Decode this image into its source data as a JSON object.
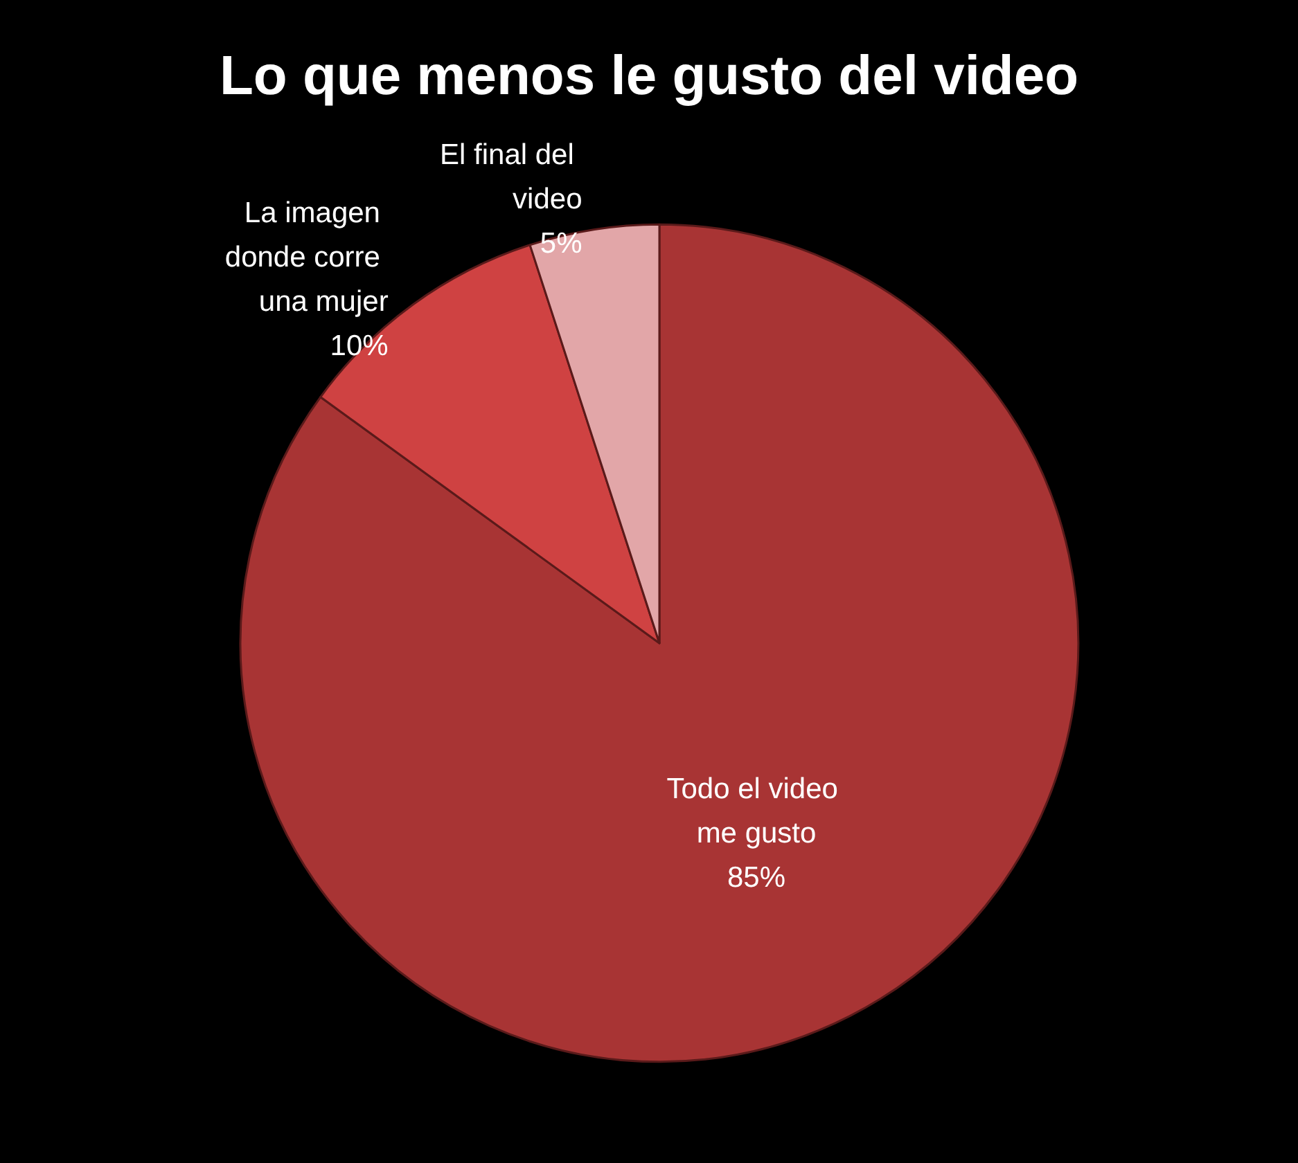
{
  "chart_data": {
    "type": "pie",
    "title": "Lo que menos le gusto del video",
    "categories": [
      "Todo el video me gusto",
      "La imagen donde corre una mujer",
      "El final del video"
    ],
    "values": [
      85,
      10,
      5
    ],
    "colors": [
      "#a83434",
      "#cf4242",
      "#e2a6a8"
    ],
    "value_labels": [
      "85%",
      "10%",
      "5%"
    ]
  }
}
